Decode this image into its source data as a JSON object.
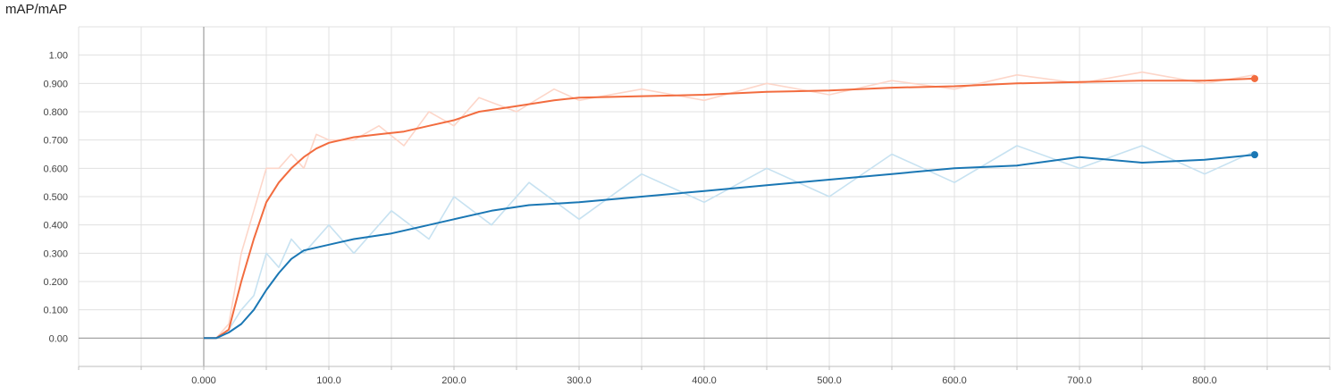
{
  "chart_data": {
    "type": "line",
    "title": "mAP/mAP",
    "xlim": [
      -100,
      900
    ],
    "ylim": [
      -0.1,
      1.1
    ],
    "x_ticks": [
      "0.000",
      "100.0",
      "200.0",
      "300.0",
      "400.0",
      "500.0",
      "600.0",
      "700.0",
      "800.0"
    ],
    "y_ticks": [
      "0.00",
      "0.100",
      "0.200",
      "0.300",
      "0.400",
      "0.500",
      "0.600",
      "0.700",
      "0.800",
      "0.900",
      "1.00"
    ],
    "grid": true,
    "series": [
      {
        "color": "#f26c3f",
        "raw_color": "#fdd6c9",
        "smoothed": [
          [
            0,
            0
          ],
          [
            10,
            0
          ],
          [
            20,
            0.03
          ],
          [
            30,
            0.2
          ],
          [
            40,
            0.35
          ],
          [
            50,
            0.48
          ],
          [
            60,
            0.55
          ],
          [
            70,
            0.6
          ],
          [
            80,
            0.64
          ],
          [
            90,
            0.67
          ],
          [
            100,
            0.69
          ],
          [
            120,
            0.71
          ],
          [
            140,
            0.72
          ],
          [
            160,
            0.73
          ],
          [
            180,
            0.75
          ],
          [
            200,
            0.77
          ],
          [
            220,
            0.8
          ],
          [
            250,
            0.82
          ],
          [
            280,
            0.84
          ],
          [
            300,
            0.85
          ],
          [
            350,
            0.855
          ],
          [
            400,
            0.86
          ],
          [
            450,
            0.87
          ],
          [
            500,
            0.875
          ],
          [
            550,
            0.885
          ],
          [
            600,
            0.89
          ],
          [
            650,
            0.9
          ],
          [
            700,
            0.905
          ],
          [
            750,
            0.91
          ],
          [
            800,
            0.91
          ],
          [
            840,
            0.917
          ]
        ],
        "raw": [
          [
            0,
            0
          ],
          [
            10,
            0
          ],
          [
            20,
            0.05
          ],
          [
            30,
            0.3
          ],
          [
            40,
            0.45
          ],
          [
            50,
            0.6
          ],
          [
            60,
            0.6
          ],
          [
            70,
            0.65
          ],
          [
            80,
            0.6
          ],
          [
            90,
            0.72
          ],
          [
            100,
            0.7
          ],
          [
            120,
            0.7
          ],
          [
            140,
            0.75
          ],
          [
            160,
            0.68
          ],
          [
            180,
            0.8
          ],
          [
            200,
            0.75
          ],
          [
            220,
            0.85
          ],
          [
            250,
            0.8
          ],
          [
            280,
            0.88
          ],
          [
            300,
            0.84
          ],
          [
            350,
            0.88
          ],
          [
            400,
            0.84
          ],
          [
            450,
            0.9
          ],
          [
            500,
            0.86
          ],
          [
            550,
            0.91
          ],
          [
            600,
            0.88
          ],
          [
            650,
            0.93
          ],
          [
            700,
            0.9
          ],
          [
            750,
            0.94
          ],
          [
            800,
            0.9
          ],
          [
            840,
            0.93
          ]
        ]
      },
      {
        "color": "#1a77b4",
        "raw_color": "#c7e2f1",
        "smoothed": [
          [
            0,
            0
          ],
          [
            10,
            0
          ],
          [
            20,
            0.02
          ],
          [
            30,
            0.05
          ],
          [
            40,
            0.1
          ],
          [
            50,
            0.17
          ],
          [
            60,
            0.23
          ],
          [
            70,
            0.28
          ],
          [
            80,
            0.31
          ],
          [
            100,
            0.33
          ],
          [
            120,
            0.35
          ],
          [
            150,
            0.37
          ],
          [
            180,
            0.4
          ],
          [
            200,
            0.42
          ],
          [
            230,
            0.45
          ],
          [
            260,
            0.47
          ],
          [
            300,
            0.48
          ],
          [
            350,
            0.5
          ],
          [
            400,
            0.52
          ],
          [
            450,
            0.54
          ],
          [
            500,
            0.56
          ],
          [
            550,
            0.58
          ],
          [
            600,
            0.6
          ],
          [
            650,
            0.61
          ],
          [
            700,
            0.64
          ],
          [
            750,
            0.62
          ],
          [
            800,
            0.63
          ],
          [
            840,
            0.648
          ]
        ],
        "raw": [
          [
            0,
            0
          ],
          [
            10,
            0
          ],
          [
            20,
            0.03
          ],
          [
            30,
            0.1
          ],
          [
            40,
            0.15
          ],
          [
            50,
            0.3
          ],
          [
            60,
            0.25
          ],
          [
            70,
            0.35
          ],
          [
            80,
            0.3
          ],
          [
            100,
            0.4
          ],
          [
            120,
            0.3
          ],
          [
            150,
            0.45
          ],
          [
            180,
            0.35
          ],
          [
            200,
            0.5
          ],
          [
            230,
            0.4
          ],
          [
            260,
            0.55
          ],
          [
            300,
            0.42
          ],
          [
            350,
            0.58
          ],
          [
            400,
            0.48
          ],
          [
            450,
            0.6
          ],
          [
            500,
            0.5
          ],
          [
            550,
            0.65
          ],
          [
            600,
            0.55
          ],
          [
            650,
            0.68
          ],
          [
            700,
            0.6
          ],
          [
            750,
            0.68
          ],
          [
            800,
            0.58
          ],
          [
            840,
            0.66
          ]
        ]
      }
    ]
  }
}
